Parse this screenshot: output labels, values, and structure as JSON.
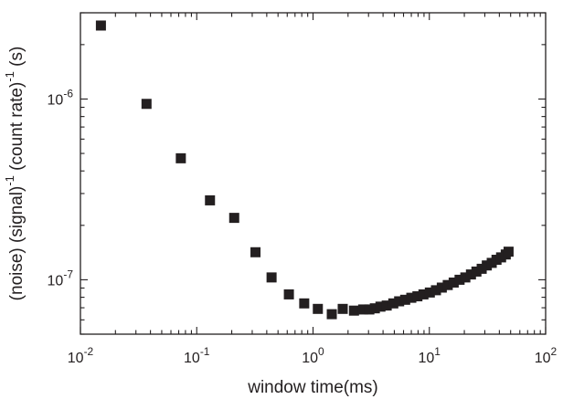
{
  "chart_data": {
    "type": "scatter",
    "title": "",
    "xlabel": "window time(ms)",
    "ylabel": {
      "parts": [
        {
          "text": "(noise) (signal)",
          "sup": false
        },
        {
          "text": "-1",
          "sup": true
        },
        {
          "text": " (count rate)",
          "sup": false
        },
        {
          "text": "-1",
          "sup": true
        },
        {
          "text": " (s)",
          "sup": false
        }
      ]
    },
    "xscale": "log",
    "yscale": "log",
    "xlim": [
      0.01,
      100
    ],
    "ylim": [
      5e-08,
      3e-06
    ],
    "grid": false,
    "marker": "square",
    "marker_color": "#231f20",
    "axis_color": "#231f20",
    "x_ticks": [
      {
        "value": 0.01,
        "base": "10",
        "exp": "-2"
      },
      {
        "value": 0.1,
        "base": "10",
        "exp": "-1"
      },
      {
        "value": 1,
        "base": "10",
        "exp": "0"
      },
      {
        "value": 10,
        "base": "10",
        "exp": "1"
      },
      {
        "value": 100,
        "base": "10",
        "exp": "2"
      }
    ],
    "y_ticks": [
      {
        "value": 1e-07,
        "base": "10",
        "exp": "-7"
      },
      {
        "value": 1e-06,
        "base": "10",
        "exp": "-6"
      }
    ],
    "series": [
      {
        "x": [
          0.015,
          0.037,
          0.073,
          0.13,
          0.21,
          0.32,
          0.44,
          0.62,
          0.84,
          1.1,
          1.45,
          1.8,
          2.25,
          2.7,
          3.05,
          3.4,
          3.8,
          4.3,
          4.9,
          5.5,
          6.2,
          7.0,
          7.9,
          8.9,
          10.1,
          11.4,
          12.8,
          14.4,
          16.2,
          18.2,
          20.4,
          22.8,
          25.4,
          28.2,
          31.2,
          34.4,
          37.8,
          41.4,
          45.4,
          48.0
        ],
        "y": [
          2.55e-06,
          9.4e-07,
          4.7e-07,
          2.75e-07,
          2.2e-07,
          1.42e-07,
          1.03e-07,
          8.3e-08,
          7.4e-08,
          6.9e-08,
          6.45e-08,
          6.9e-08,
          6.75e-08,
          6.85e-08,
          6.85e-08,
          6.95e-08,
          7.1e-08,
          7.2e-08,
          7.4e-08,
          7.6e-08,
          7.75e-08,
          7.95e-08,
          8.1e-08,
          8.3e-08,
          8.5e-08,
          8.75e-08,
          9.05e-08,
          9.35e-08,
          9.65e-08,
          1e-07,
          1.03e-07,
          1.07e-07,
          1.11e-07,
          1.15e-07,
          1.2e-07,
          1.24e-07,
          1.29e-07,
          1.33e-07,
          1.38e-07,
          1.43e-07
        ]
      }
    ]
  }
}
